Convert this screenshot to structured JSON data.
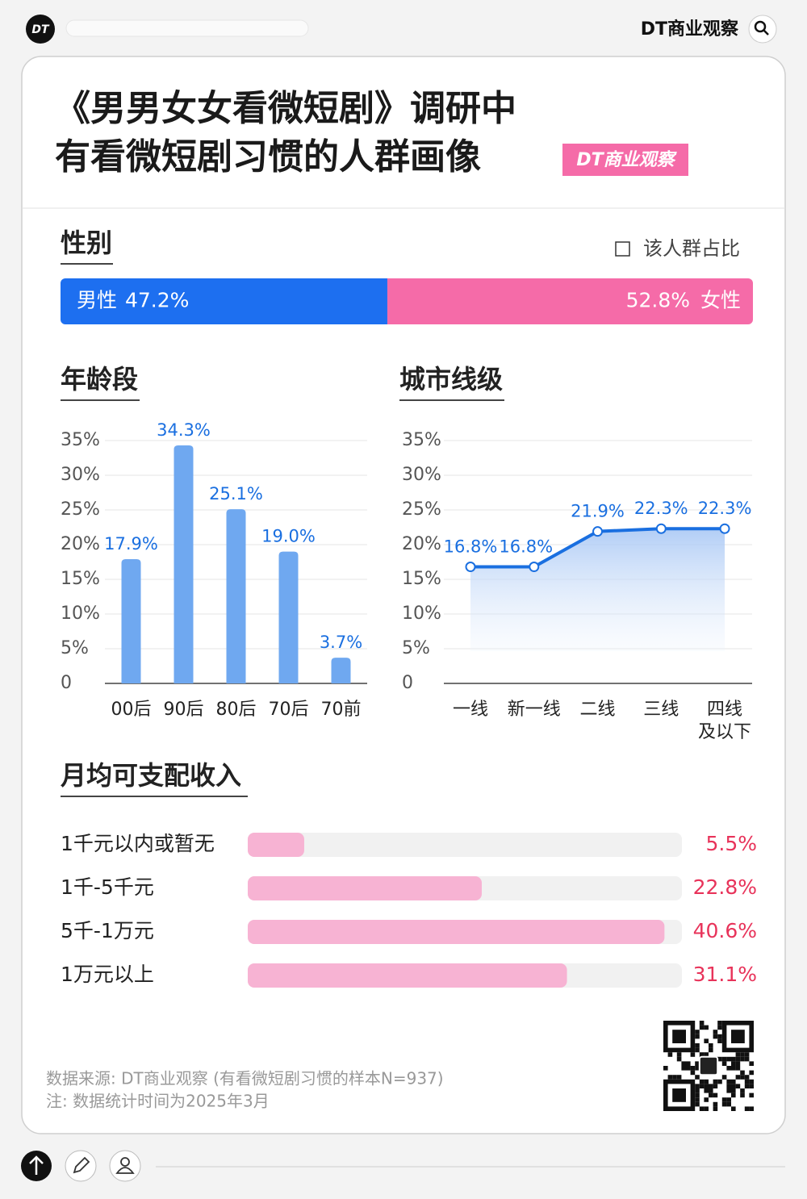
{
  "header": {
    "logo": "DT",
    "brand": "DT商业观察"
  },
  "title": {
    "line1": "《男男女女看微短剧》调研中",
    "line2": "有看微短剧习惯的人群画像",
    "badge": "DT商业观察"
  },
  "legend": "该人群占比",
  "chart_data": [
    {
      "type": "stacked_bar",
      "title": "性别",
      "series": [
        {
          "name": "男性",
          "color": "#1d6ff0",
          "values": [
            47.2
          ],
          "value_labels": [
            "47.2%"
          ]
        },
        {
          "name": "女性",
          "color": "#f56ba8",
          "values": [
            52.8
          ],
          "value_labels": [
            "52.8%"
          ]
        }
      ]
    },
    {
      "type": "bar",
      "title": "年龄段",
      "categories": [
        "00后",
        "90后",
        "80后",
        "70后",
        "70前"
      ],
      "values": [
        17.9,
        34.3,
        25.1,
        19.0,
        3.7
      ],
      "value_labels": [
        "17.9%",
        "34.3%",
        "25.1%",
        "19.0%",
        "3.7%"
      ],
      "color": "#6fa8f0",
      "label_color": "#1a6fe0",
      "ylim": [
        0,
        35
      ],
      "yticks": [
        0,
        {
          "value": 5,
          "label": "5%"
        },
        {
          "value": 10,
          "label": "10%"
        },
        {
          "value": 15,
          "label": "15%"
        },
        {
          "value": 20,
          "label": "20%"
        },
        {
          "value": 25,
          "label": "25%"
        },
        {
          "value": 30,
          "label": "30%"
        },
        {
          "value": 35,
          "label": "35%"
        }
      ],
      "grid": true
    },
    {
      "type": "line",
      "title": "城市线级",
      "categories": [
        "一线",
        "新一线",
        "二线",
        "三线",
        "四线\n及以下"
      ],
      "values": [
        16.8,
        16.8,
        21.9,
        22.3,
        22.3
      ],
      "value_labels": [
        "16.8%",
        "16.8%",
        "21.9%",
        "22.3%",
        "22.3%"
      ],
      "color": "#1a6fe0",
      "ylim": [
        0,
        35
      ],
      "yticks": [
        0,
        {
          "value": 5,
          "label": "5%"
        },
        {
          "value": 10,
          "label": "10%"
        },
        {
          "value": 15,
          "label": "15%"
        },
        {
          "value": 20,
          "label": "20%"
        },
        {
          "value": 25,
          "label": "25%"
        },
        {
          "value": 30,
          "label": "30%"
        },
        {
          "value": 35,
          "label": "35%"
        }
      ],
      "grid": true
    },
    {
      "type": "hbar",
      "title": "月均可支配收入",
      "categories": [
        "1千元以内或暂无",
        "1千-5千元",
        "5千-1万元",
        "1万元以上"
      ],
      "values": [
        5.5,
        22.8,
        40.6,
        31.1
      ],
      "value_labels": [
        "5.5%",
        "22.8%",
        "40.6%",
        "31.1%"
      ],
      "color": "#f7b3d3",
      "label_color": "#e8335a",
      "xlim": [
        0,
        42.3
      ]
    }
  ],
  "footer": {
    "source": "数据来源: DT商业观察 (有看微短剧习惯的样本N=937)",
    "note": "注: 数据统计时间为2025年3月"
  }
}
